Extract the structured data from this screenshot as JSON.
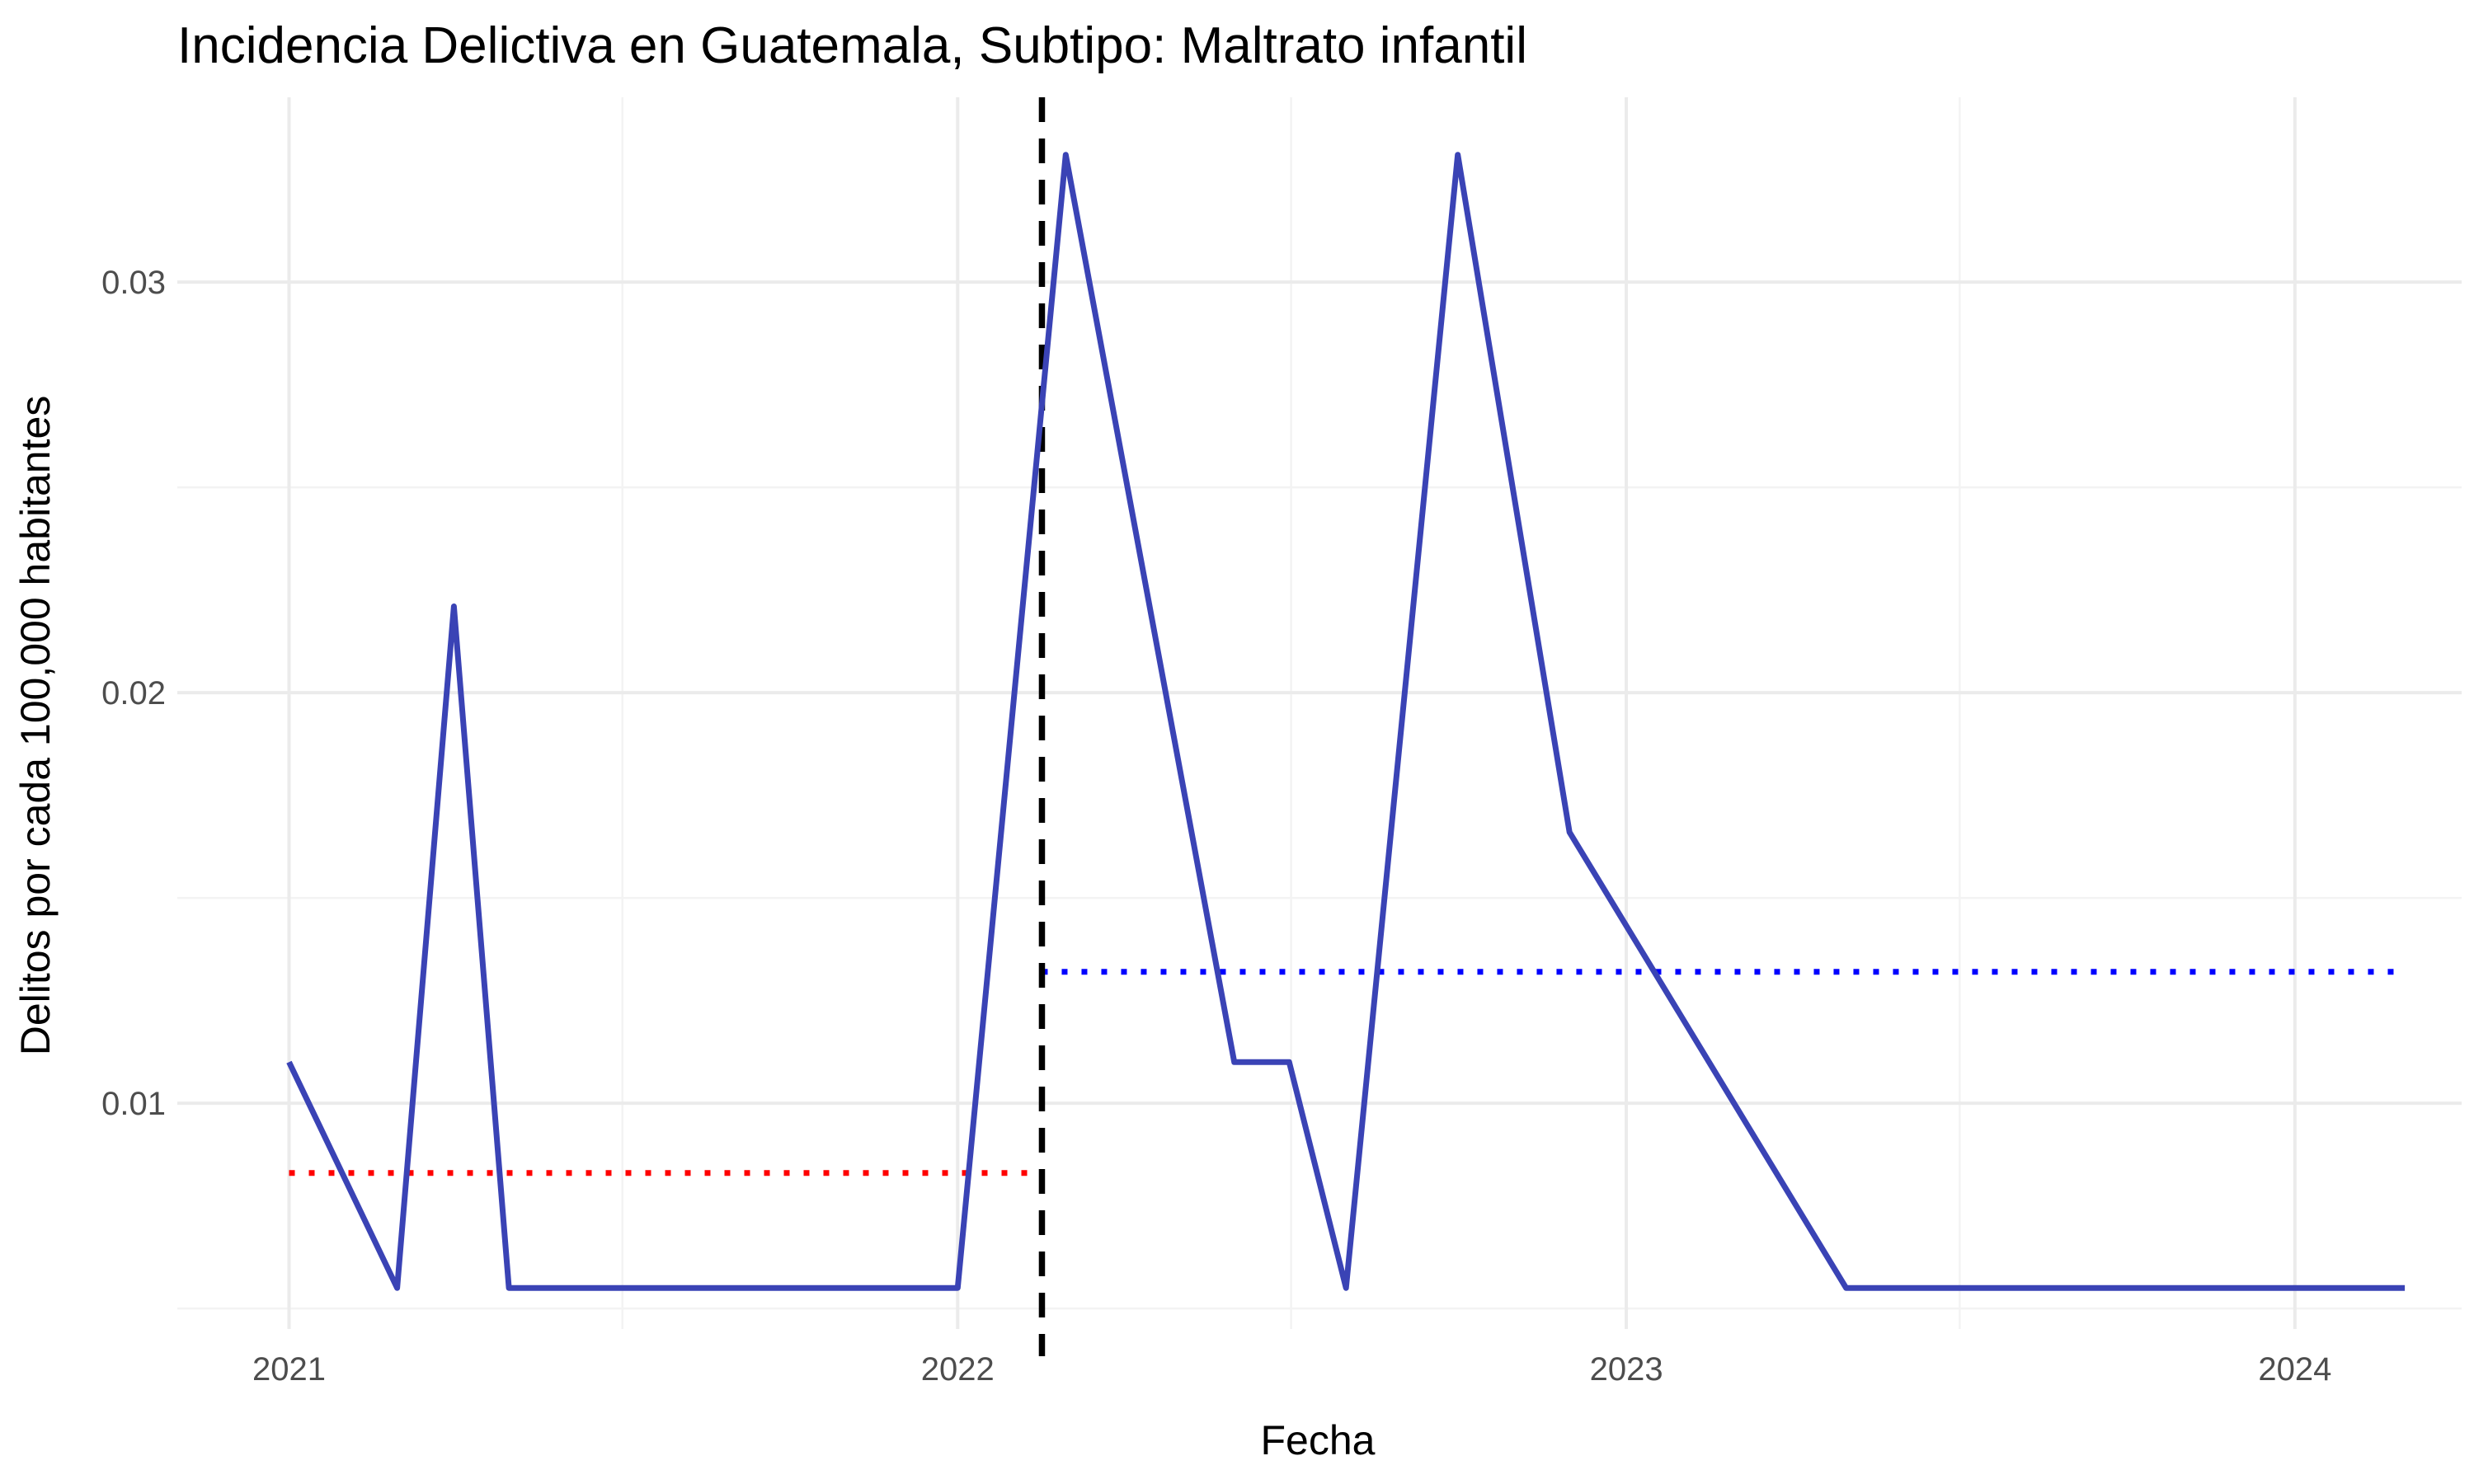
{
  "chart_data": {
    "type": "line",
    "title": "Incidencia Delictiva en Guatemala, Subtipo: Maltrato infantil",
    "xlabel": "Fecha",
    "ylabel": "Delitos por cada 100,000 habitantes",
    "x_ticks": [
      "2021",
      "2022",
      "2023",
      "2024"
    ],
    "y_ticks": [
      "0.01",
      "0.02",
      "0.03"
    ],
    "xlim": [
      "2020-11-01",
      "2024-04-01"
    ],
    "ylim": [
      0.0045,
      0.0345
    ],
    "grid": true,
    "legend": "none",
    "series": [
      {
        "color": "#3a43b5",
        "points": [
          {
            "x": "2021-01-01",
            "y": 0.011
          },
          {
            "x": "2021-03-01",
            "y": 0.0055
          },
          {
            "x": "2021-04-01",
            "y": 0.0221
          },
          {
            "x": "2021-05-01",
            "y": 0.0055
          },
          {
            "x": "2021-06-01",
            "y": 0.0055
          },
          {
            "x": "2021-07-01",
            "y": 0.0055
          },
          {
            "x": "2021-08-01",
            "y": 0.0055
          },
          {
            "x": "2021-09-01",
            "y": 0.0055
          },
          {
            "x": "2021-10-01",
            "y": 0.0055
          },
          {
            "x": "2021-11-01",
            "y": 0.0055
          },
          {
            "x": "2021-12-01",
            "y": 0.0055
          },
          {
            "x": "2022-01-01",
            "y": 0.0055
          },
          {
            "x": "2022-03-01",
            "y": 0.0331
          },
          {
            "x": "2022-06-01",
            "y": 0.011
          },
          {
            "x": "2022-07-01",
            "y": 0.011
          },
          {
            "x": "2022-08-01",
            "y": 0.0055
          },
          {
            "x": "2022-10-01",
            "y": 0.0331
          },
          {
            "x": "2022-12-01",
            "y": 0.0166
          },
          {
            "x": "2023-05-01",
            "y": 0.0055
          },
          {
            "x": "2023-06-01",
            "y": 0.0055
          },
          {
            "x": "2023-07-01",
            "y": 0.0055
          },
          {
            "x": "2023-08-01",
            "y": 0.0055
          },
          {
            "x": "2023-09-01",
            "y": 0.0055
          },
          {
            "x": "2023-10-01",
            "y": 0.0055
          },
          {
            "x": "2023-11-01",
            "y": 0.0055
          },
          {
            "x": "2023-12-01",
            "y": 0.0055
          },
          {
            "x": "2024-01-01",
            "y": 0.0055
          },
          {
            "x": "2024-02-01",
            "y": 0.0055
          },
          {
            "x": "2024-03-01",
            "y": 0.0055
          }
        ]
      }
    ],
    "vline": {
      "x": "2022-02-16",
      "style": "dashed",
      "color": "#000000"
    },
    "mean_lines": [
      {
        "x_start": "2021-01-01",
        "x_end": "2022-02-16",
        "y": 0.0083,
        "style": "dotted",
        "color": "#ff0000"
      },
      {
        "x_start": "2022-02-16",
        "x_end": "2024-03-01",
        "y": 0.0132,
        "style": "dotted",
        "color": "#0000ff"
      }
    ]
  }
}
